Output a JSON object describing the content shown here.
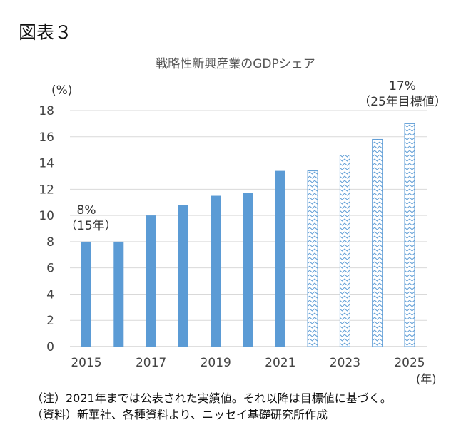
{
  "figure_label": "図表３",
  "chart_data": {
    "type": "bar",
    "title": "戦略性新興産業のGDPシェア",
    "ylabel": "(%)",
    "xlabel": "(年)",
    "ylim": [
      0,
      18
    ],
    "yticks": [
      0,
      2,
      4,
      6,
      8,
      10,
      12,
      14,
      16,
      18
    ],
    "grid": true,
    "categories": [
      2015,
      2016,
      2017,
      2018,
      2019,
      2020,
      2021,
      2022,
      2023,
      2024,
      2025
    ],
    "xtick_labels": [
      "2015",
      "2017",
      "2019",
      "2021",
      "2023",
      "2025"
    ],
    "series": [
      {
        "name": "実績値",
        "values": [
          8.0,
          8.0,
          10.0,
          10.8,
          11.5,
          11.7,
          13.4,
          null,
          null,
          null,
          null
        ],
        "color": "#5b9bd5"
      },
      {
        "name": "目標値",
        "values": [
          null,
          null,
          null,
          null,
          null,
          null,
          null,
          13.4,
          14.6,
          15.8,
          17.0
        ],
        "color": "#5b9bd5",
        "pattern": "zigzag"
      }
    ],
    "annotations": [
      {
        "category": 2015,
        "line1": "8%",
        "line2": "（15年）"
      },
      {
        "category": 2025,
        "line1": "17%",
        "line2": "（25年目標値）"
      }
    ]
  },
  "notes": [
    "（注）2021年までは公表された実績値。それ以降は目標値に基づく。",
    "（資料）新華社、各種資料より、ニッセイ基礎研究所作成"
  ]
}
